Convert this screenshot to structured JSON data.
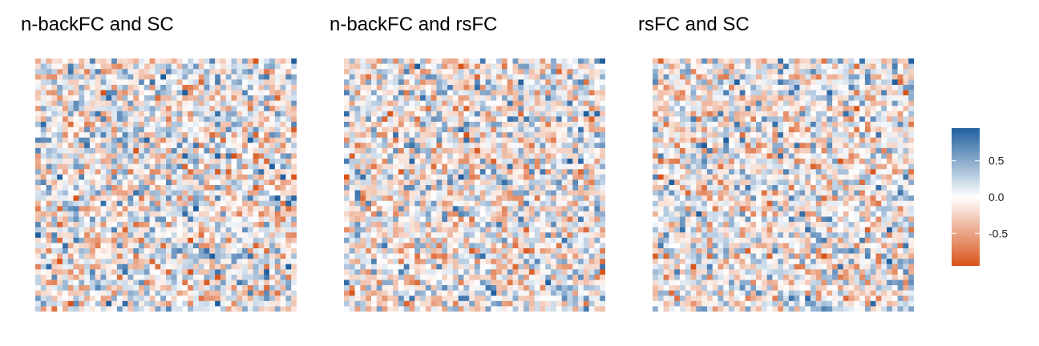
{
  "chart_data": [
    {
      "type": "heatmap",
      "title": "n-backFC and SC",
      "xlabel": "",
      "ylabel": "",
      "n_rows": 48,
      "n_cols": 48,
      "value_range": [
        -1,
        1
      ],
      "seed": 11,
      "corner_value": 0.95
    },
    {
      "type": "heatmap",
      "title": "n-backFC and rsFC",
      "xlabel": "",
      "ylabel": "",
      "n_rows": 48,
      "n_cols": 48,
      "value_range": [
        -1,
        1
      ],
      "seed": 23,
      "corner_value": 0.95
    },
    {
      "type": "heatmap",
      "title": "rsFC and SC",
      "xlabel": "",
      "ylabel": "",
      "n_rows": 48,
      "n_cols": 48,
      "value_range": [
        -1,
        1
      ],
      "seed": 37,
      "corner_value": 0.95
    }
  ],
  "legend": {
    "ticks": [
      0.5,
      0.0,
      -0.5
    ],
    "tick_labels": [
      "0.5",
      "0.0",
      "-0.5"
    ],
    "limits": [
      -0.95,
      0.95
    ],
    "colors": {
      "high": "#1f5fa0",
      "mid": "#ffffff",
      "low": "#d8541a"
    }
  }
}
